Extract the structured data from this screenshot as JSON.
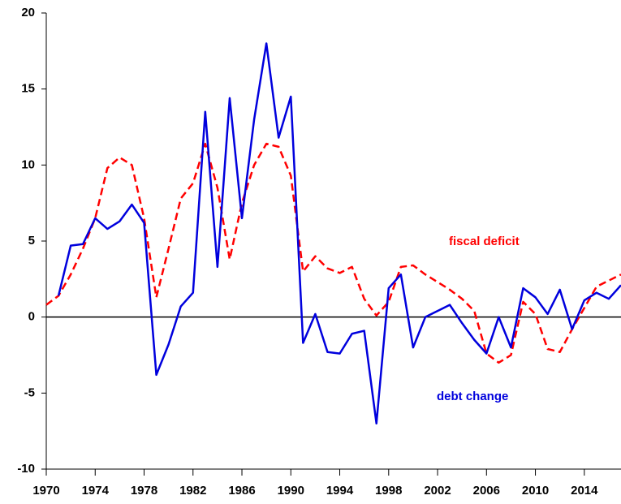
{
  "chart_data": {
    "type": "line",
    "x": [
      1970,
      1971,
      1972,
      1973,
      1974,
      1975,
      1976,
      1977,
      1978,
      1979,
      1980,
      1981,
      1982,
      1983,
      1984,
      1985,
      1986,
      1987,
      1988,
      1989,
      1990,
      1991,
      1992,
      1993,
      1994,
      1995,
      1996,
      1997,
      1998,
      1999,
      2000,
      2001,
      2002,
      2003,
      2004,
      2005,
      2006,
      2007,
      2008,
      2009,
      2010,
      2011,
      2012,
      2013,
      2014,
      2015,
      2016,
      2017
    ],
    "series": [
      {
        "name": "fiscal deficit",
        "color": "#ff0000",
        "dashed": true,
        "values": [
          0.8,
          1.4,
          2.8,
          4.5,
          6.5,
          9.8,
          10.5,
          10,
          6.5,
          1.3,
          4.5,
          7.8,
          8.8,
          11.4,
          8.5,
          3.8,
          7.5,
          10,
          11.4,
          11.2,
          9.3,
          3,
          4,
          3.2,
          2.9,
          3.3,
          1.2,
          0.1,
          1,
          3.3,
          3.4,
          2.8,
          2.3,
          1.8,
          1.2,
          0.4,
          -2.4,
          -3,
          -2.5,
          1,
          0.2,
          -2.1,
          -2.3,
          -0.8,
          0.6,
          2,
          2.4,
          2.8
        ]
      },
      {
        "name": "debt change",
        "color": "#0000dd",
        "dashed": false,
        "values": [
          null,
          1.4,
          4.7,
          4.8,
          6.5,
          5.8,
          6.3,
          7.4,
          6.2,
          -3.8,
          -1.8,
          0.7,
          1.6,
          13.5,
          3.3,
          14.4,
          6.5,
          13,
          18,
          11.8,
          14.5,
          -1.7,
          0.2,
          -2.3,
          -2.4,
          -1.1,
          -0.9,
          -7,
          1.9,
          2.8,
          -2,
          0,
          0.4,
          0.8,
          -0.4,
          -1.5,
          -2.4,
          0,
          -2,
          1.9,
          1.3,
          0.2,
          1.8,
          -0.8,
          1.1,
          1.6,
          1.2,
          2.1
        ]
      }
    ],
    "xlim": [
      1970,
      2017
    ],
    "xticks": [
      1970,
      1974,
      1978,
      1982,
      1986,
      1990,
      1994,
      1998,
      2002,
      2006,
      2010,
      2014
    ],
    "ylim": [
      -10,
      20
    ],
    "yticks": [
      -10,
      -5,
      0,
      5,
      10,
      15,
      20
    ]
  }
}
